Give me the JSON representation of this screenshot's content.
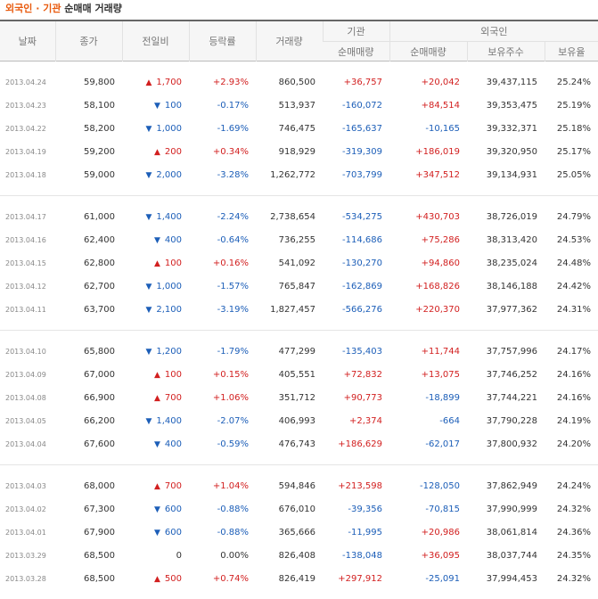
{
  "title": {
    "part1": "외국인 · 기관",
    "part2": " 순매매 거래량"
  },
  "headers": {
    "date": "날짜",
    "close": "종가",
    "change": "전일비",
    "rate": "등락률",
    "volume": "거래량",
    "inst": "기관",
    "foreign": "외국인",
    "inst_net": "순매매량",
    "for_net": "순매매량",
    "for_hold": "보유주수",
    "for_ratio": "보유율"
  },
  "colors": {
    "up": "#d21f1f",
    "down": "#1c5eb8",
    "title_accent": "#e8590c"
  },
  "groups": [
    [
      {
        "date": "2013.04.24",
        "close": "59,800",
        "dir": "up",
        "chg": "1,700",
        "rate": "+2.93%",
        "vol": "860,500",
        "inst": "+36,757",
        "frn": "+20,042",
        "hold": "39,437,115",
        "ratio": "25.24%"
      },
      {
        "date": "2013.04.23",
        "close": "58,100",
        "dir": "down",
        "chg": "100",
        "rate": "-0.17%",
        "vol": "513,937",
        "inst": "-160,072",
        "frn": "+84,514",
        "hold": "39,353,475",
        "ratio": "25.19%"
      },
      {
        "date": "2013.04.22",
        "close": "58,200",
        "dir": "down",
        "chg": "1,000",
        "rate": "-1.69%",
        "vol": "746,475",
        "inst": "-165,637",
        "frn": "-10,165",
        "hold": "39,332,371",
        "ratio": "25.18%"
      },
      {
        "date": "2013.04.19",
        "close": "59,200",
        "dir": "up",
        "chg": "200",
        "rate": "+0.34%",
        "vol": "918,929",
        "inst": "-319,309",
        "frn": "+186,019",
        "hold": "39,320,950",
        "ratio": "25.17%"
      },
      {
        "date": "2013.04.18",
        "close": "59,000",
        "dir": "down",
        "chg": "2,000",
        "rate": "-3.28%",
        "vol": "1,262,772",
        "inst": "-703,799",
        "frn": "+347,512",
        "hold": "39,134,931",
        "ratio": "25.05%"
      }
    ],
    [
      {
        "date": "2013.04.17",
        "close": "61,000",
        "dir": "down",
        "chg": "1,400",
        "rate": "-2.24%",
        "vol": "2,738,654",
        "inst": "-534,275",
        "frn": "+430,703",
        "hold": "38,726,019",
        "ratio": "24.79%"
      },
      {
        "date": "2013.04.16",
        "close": "62,400",
        "dir": "down",
        "chg": "400",
        "rate": "-0.64%",
        "vol": "736,255",
        "inst": "-114,686",
        "frn": "+75,286",
        "hold": "38,313,420",
        "ratio": "24.53%"
      },
      {
        "date": "2013.04.15",
        "close": "62,800",
        "dir": "up",
        "chg": "100",
        "rate": "+0.16%",
        "vol": "541,092",
        "inst": "-130,270",
        "frn": "+94,860",
        "hold": "38,235,024",
        "ratio": "24.48%"
      },
      {
        "date": "2013.04.12",
        "close": "62,700",
        "dir": "down",
        "chg": "1,000",
        "rate": "-1.57%",
        "vol": "765,847",
        "inst": "-162,869",
        "frn": "+168,826",
        "hold": "38,146,188",
        "ratio": "24.42%"
      },
      {
        "date": "2013.04.11",
        "close": "63,700",
        "dir": "down",
        "chg": "2,100",
        "rate": "-3.19%",
        "vol": "1,827,457",
        "inst": "-566,276",
        "frn": "+220,370",
        "hold": "37,977,362",
        "ratio": "24.31%"
      }
    ],
    [
      {
        "date": "2013.04.10",
        "close": "65,800",
        "dir": "down",
        "chg": "1,200",
        "rate": "-1.79%",
        "vol": "477,299",
        "inst": "-135,403",
        "frn": "+11,744",
        "hold": "37,757,996",
        "ratio": "24.17%"
      },
      {
        "date": "2013.04.09",
        "close": "67,000",
        "dir": "up",
        "chg": "100",
        "rate": "+0.15%",
        "vol": "405,551",
        "inst": "+72,832",
        "frn": "+13,075",
        "hold": "37,746,252",
        "ratio": "24.16%"
      },
      {
        "date": "2013.04.08",
        "close": "66,900",
        "dir": "up",
        "chg": "700",
        "rate": "+1.06%",
        "vol": "351,712",
        "inst": "+90,773",
        "frn": "-18,899",
        "hold": "37,744,221",
        "ratio": "24.16%"
      },
      {
        "date": "2013.04.05",
        "close": "66,200",
        "dir": "down",
        "chg": "1,400",
        "rate": "-2.07%",
        "vol": "406,993",
        "inst": "+2,374",
        "frn": "-664",
        "hold": "37,790,228",
        "ratio": "24.19%"
      },
      {
        "date": "2013.04.04",
        "close": "67,600",
        "dir": "down",
        "chg": "400",
        "rate": "-0.59%",
        "vol": "476,743",
        "inst": "+186,629",
        "frn": "-62,017",
        "hold": "37,800,932",
        "ratio": "24.20%"
      }
    ],
    [
      {
        "date": "2013.04.03",
        "close": "68,000",
        "dir": "up",
        "chg": "700",
        "rate": "+1.04%",
        "vol": "594,846",
        "inst": "+213,598",
        "frn": "-128,050",
        "hold": "37,862,949",
        "ratio": "24.24%"
      },
      {
        "date": "2013.04.02",
        "close": "67,300",
        "dir": "down",
        "chg": "600",
        "rate": "-0.88%",
        "vol": "676,010",
        "inst": "-39,356",
        "frn": "-70,815",
        "hold": "37,990,999",
        "ratio": "24.32%"
      },
      {
        "date": "2013.04.01",
        "close": "67,900",
        "dir": "down",
        "chg": "600",
        "rate": "-0.88%",
        "vol": "365,666",
        "inst": "-11,995",
        "frn": "+20,986",
        "hold": "38,061,814",
        "ratio": "24.36%"
      },
      {
        "date": "2013.03.29",
        "close": "68,500",
        "dir": "none",
        "chg": "0",
        "rate": "0.00%",
        "vol": "826,408",
        "inst": "-138,048",
        "frn": "+36,095",
        "hold": "38,037,744",
        "ratio": "24.35%"
      },
      {
        "date": "2013.03.28",
        "close": "68,500",
        "dir": "up",
        "chg": "500",
        "rate": "+0.74%",
        "vol": "826,419",
        "inst": "+297,912",
        "frn": "-25,091",
        "hold": "37,994,453",
        "ratio": "24.32%"
      }
    ]
  ]
}
